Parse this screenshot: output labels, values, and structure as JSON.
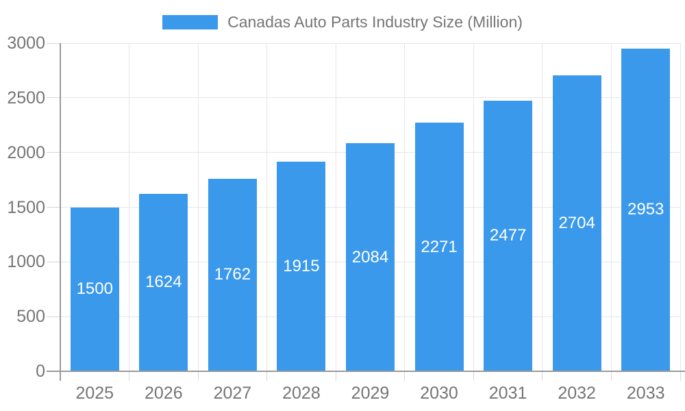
{
  "chart_data": {
    "type": "bar",
    "title": "Canadas Auto Parts Industry Size (Million)",
    "categories": [
      "2025",
      "2026",
      "2027",
      "2028",
      "2029",
      "2030",
      "2031",
      "2032",
      "2033"
    ],
    "values": [
      1500,
      1624,
      1762,
      1915,
      2084,
      2271,
      2477,
      2704,
      2953
    ],
    "series": [
      {
        "name": "Canadas Auto Parts Industry Size (Million)",
        "values": [
          1500,
          1624,
          1762,
          1915,
          2084,
          2271,
          2477,
          2704,
          2953
        ]
      }
    ],
    "xlabel": "",
    "ylabel": "",
    "ylim": [
      0,
      3000
    ],
    "ytick_step": 500,
    "ytick_labels": [
      "0",
      "500",
      "1000",
      "1500",
      "2000",
      "2500",
      "3000"
    ],
    "grid": true,
    "legend_position": "top-center",
    "value_labels": "centered-inside-bars",
    "colors": {
      "bar": "#3B99EC",
      "bar_value_text": "#FFFFFF",
      "axis_text": "#757575",
      "grid_line": "#E6E6E6",
      "tick_line": "#D6D6D6",
      "axis_line": "#999999",
      "background": "#FFFFFF"
    }
  }
}
